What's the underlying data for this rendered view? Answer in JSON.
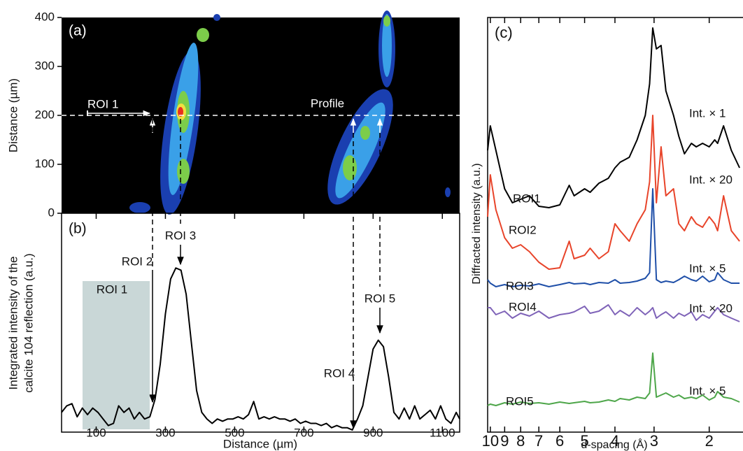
{
  "chart_data": [
    {
      "type": "heatmap",
      "panel_label": "(a)",
      "ylabel": "Distance (µm)",
      "ylim": [
        0,
        400
      ],
      "yticks": [
        0,
        100,
        200,
        300,
        400
      ],
      "xlim": [
        0,
        1150
      ],
      "annotations": [
        "ROI 1",
        "Profile"
      ]
    },
    {
      "type": "line",
      "panel_label": "(b)",
      "xlabel": "Distance (µm)",
      "ylabel": [
        "Integrated intensity of the",
        "calcite 104 reflection (a.u.)"
      ],
      "xlim": [
        0,
        1150
      ],
      "xticks": [
        100,
        300,
        500,
        700,
        900,
        1100
      ],
      "ylim": [
        0,
        1
      ],
      "color": "#000000",
      "x": [
        0,
        15,
        30,
        45,
        60,
        75,
        90,
        105,
        120,
        135,
        150,
        165,
        180,
        195,
        210,
        225,
        240,
        255,
        270,
        285,
        300,
        315,
        330,
        345,
        360,
        375,
        390,
        405,
        420,
        435,
        450,
        465,
        480,
        495,
        510,
        525,
        540,
        555,
        570,
        585,
        600,
        615,
        630,
        645,
        660,
        675,
        690,
        705,
        720,
        735,
        750,
        765,
        780,
        795,
        810,
        825,
        840,
        855,
        870,
        885,
        900,
        915,
        930,
        945,
        960,
        975,
        990,
        1005,
        1020,
        1035,
        1050,
        1065,
        1080,
        1095,
        1110,
        1125,
        1140,
        1150
      ],
      "values": [
        0.09,
        0.12,
        0.13,
        0.07,
        0.11,
        0.08,
        0.11,
        0.09,
        0.06,
        0.03,
        0.04,
        0.12,
        0.09,
        0.11,
        0.06,
        0.09,
        0.06,
        0.07,
        0.15,
        0.31,
        0.54,
        0.7,
        0.75,
        0.74,
        0.63,
        0.41,
        0.19,
        0.09,
        0.06,
        0.04,
        0.06,
        0.05,
        0.06,
        0.06,
        0.07,
        0.06,
        0.08,
        0.14,
        0.06,
        0.07,
        0.06,
        0.07,
        0.06,
        0.06,
        0.05,
        0.06,
        0.04,
        0.05,
        0.04,
        0.04,
        0.03,
        0.04,
        0.02,
        0.03,
        0.02,
        0.02,
        0.01,
        0.06,
        0.12,
        0.25,
        0.38,
        0.42,
        0.39,
        0.25,
        0.09,
        0.06,
        0.11,
        0.06,
        0.12,
        0.06,
        0.08,
        0.1,
        0.06,
        0.12,
        0.06,
        0.04,
        0.09,
        0.06
      ],
      "annotations": [
        "ROI 1",
        "ROI 2",
        "ROI 3",
        "ROI 4",
        "ROI 5"
      ]
    },
    {
      "type": "line",
      "panel_label": "(c)",
      "xlabel": "d-spacing (Å)",
      "ylabel": "Diffracted intensity (a.u.)",
      "xscale": "log",
      "xlim": [
        10.2,
        1.56
      ],
      "xticks": [
        10,
        9,
        8,
        7,
        6,
        5,
        4,
        3,
        2
      ],
      "ylim": [
        0,
        600
      ],
      "x": [
        10.2,
        10,
        9.6,
        9,
        8.5,
        8,
        7.5,
        7,
        6.5,
        6,
        5.6,
        5.4,
        5,
        4.8,
        4.5,
        4.2,
        4,
        3.85,
        3.6,
        3.4,
        3.2,
        3.1,
        3.03,
        2.95,
        2.85,
        2.75,
        2.6,
        2.5,
        2.4,
        2.28,
        2.2,
        2.1,
        2.0,
        1.92,
        1.88,
        1.8,
        1.7,
        1.6
      ],
      "series": [
        {
          "name": "ROI1",
          "color": "#000000",
          "annotation": "Int. × 1",
          "values": [
            403,
            438,
            403,
            348,
            328,
            333,
            338,
            323,
            321,
            325,
            353,
            338,
            348,
            343,
            356,
            363,
            378,
            386,
            393,
            418,
            453,
            498,
            578,
            548,
            553,
            488,
            453,
            423,
            398,
            413,
            408,
            413,
            408,
            418,
            413,
            438,
            403,
            378
          ]
        },
        {
          "name": "ROI2",
          "color": "#e8442a",
          "annotation": "Int. × 20",
          "values": [
            308,
            368,
            318,
            278,
            263,
            268,
            258,
            243,
            233,
            235,
            273,
            248,
            253,
            263,
            248,
            258,
            298,
            288,
            273,
            298,
            318,
            358,
            453,
            328,
            408,
            338,
            348,
            298,
            288,
            308,
            298,
            293,
            308,
            298,
            288,
            338,
            288,
            273
          ]
        },
        {
          "name": "ROI3",
          "color": "#1f4fa8",
          "annotation": "Int. × 5",
          "values": [
            218,
            213,
            208,
            211,
            208,
            210,
            209,
            212,
            208,
            211,
            214,
            212,
            213,
            211,
            214,
            213,
            218,
            213,
            214,
            216,
            220,
            228,
            348,
            218,
            214,
            216,
            214,
            218,
            223,
            218,
            216,
            223,
            215,
            218,
            228,
            218,
            213,
            213
          ]
        },
        {
          "name": "ROI4",
          "color": "#7f63b8",
          "annotation": "Int. × 20",
          "values": [
            178,
            178,
            168,
            173,
            163,
            170,
            166,
            173,
            163,
            168,
            170,
            172,
            180,
            170,
            173,
            182,
            168,
            174,
            166,
            178,
            168,
            173,
            178,
            163,
            168,
            172,
            163,
            170,
            166,
            172,
            160,
            168,
            163,
            173,
            178,
            168,
            163,
            158
          ]
        },
        {
          "name": "ROI5",
          "color": "#4ea64a",
          "annotation": "Int. × 5",
          "values": [
            38,
            40,
            38,
            42,
            40,
            43,
            41,
            42,
            40,
            43,
            41,
            42,
            44,
            42,
            43,
            46,
            44,
            48,
            46,
            50,
            48,
            56,
            113,
            50,
            53,
            56,
            50,
            53,
            48,
            50,
            48,
            53,
            46,
            50,
            58,
            50,
            48,
            43
          ]
        }
      ]
    }
  ]
}
